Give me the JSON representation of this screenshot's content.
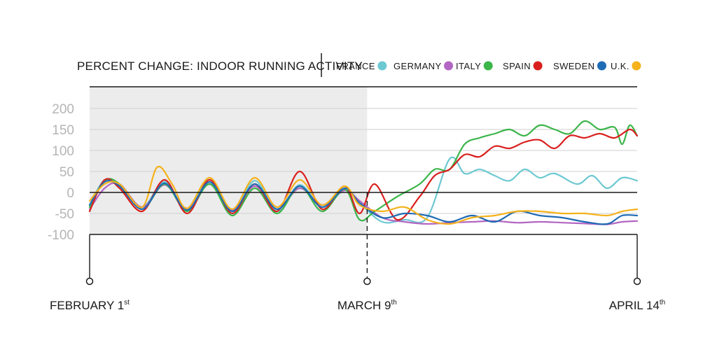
{
  "chart_data": {
    "type": "line",
    "title": "PERCENT CHANGE: INDOOR RUNNING ACTIVITY",
    "xlabel": "",
    "ylabel": "",
    "ylim": [
      -100,
      200
    ],
    "yticks": [
      {
        "value": 200,
        "label": "200"
      },
      {
        "value": 150,
        "label": "150"
      },
      {
        "value": 100,
        "label": "100"
      },
      {
        "value": 50,
        "label": "50"
      },
      {
        "value": 0,
        "label": "0"
      },
      {
        "value": -50,
        "label": "-50"
      },
      {
        "value": -100,
        "label": "-100"
      }
    ],
    "x_range": [
      "2020-02-01",
      "2020-04-14"
    ],
    "date_markers": [
      {
        "date": "2020-02-01",
        "label": "FEBRUARY 1",
        "suffix": "st"
      },
      {
        "date": "2020-03-09",
        "label": "MARCH 9",
        "suffix": "th"
      },
      {
        "date": "2020-04-14",
        "label": "APRIL 14",
        "suffix": "th"
      }
    ],
    "shaded_period": [
      "2020-02-01",
      "2020-03-09"
    ],
    "grid": true,
    "legend_position": "top-right",
    "series": [
      {
        "name": "FRANCE",
        "color": "#6cc9d2",
        "x": [
          "2020-02-01",
          "2020-02-03",
          "2020-02-05",
          "2020-02-08",
          "2020-02-11",
          "2020-02-14",
          "2020-02-17",
          "2020-02-20",
          "2020-02-23",
          "2020-02-26",
          "2020-02-29",
          "2020-03-03",
          "2020-03-06",
          "2020-03-08",
          "2020-03-11",
          "2020-03-14",
          "2020-03-17",
          "2020-03-20",
          "2020-03-22",
          "2020-03-24",
          "2020-03-26",
          "2020-03-28",
          "2020-03-30",
          "2020-04-01",
          "2020-04-03",
          "2020-04-06",
          "2020-04-08",
          "2020-04-10",
          "2020-04-12",
          "2020-04-14"
        ],
        "y": [
          -30,
          30,
          15,
          -35,
          25,
          -40,
          30,
          -50,
          28,
          -45,
          18,
          -35,
          5,
          -25,
          -70,
          -65,
          -60,
          80,
          45,
          55,
          40,
          28,
          55,
          35,
          45,
          20,
          40,
          10,
          35,
          28
        ]
      },
      {
        "name": "GERMANY",
        "color": "#b266c2",
        "x": [
          "2020-02-01",
          "2020-02-03",
          "2020-02-05",
          "2020-02-08",
          "2020-02-11",
          "2020-02-14",
          "2020-02-17",
          "2020-02-20",
          "2020-02-23",
          "2020-02-26",
          "2020-02-29",
          "2020-03-03",
          "2020-03-06",
          "2020-03-08",
          "2020-03-11",
          "2020-03-14",
          "2020-03-17",
          "2020-03-20",
          "2020-03-23",
          "2020-03-26",
          "2020-03-29",
          "2020-04-01",
          "2020-04-04",
          "2020-04-07",
          "2020-04-10",
          "2020-04-12",
          "2020-04-14"
        ],
        "y": [
          -40,
          10,
          20,
          -35,
          18,
          -38,
          20,
          -42,
          15,
          -40,
          10,
          -30,
          5,
          -20,
          -60,
          -70,
          -75,
          -72,
          -70,
          -68,
          -72,
          -70,
          -72,
          -74,
          -76,
          -70,
          -68
        ]
      },
      {
        "name": "ITALY",
        "color": "#3cb54a",
        "x": [
          "2020-02-01",
          "2020-02-03",
          "2020-02-05",
          "2020-02-08",
          "2020-02-11",
          "2020-02-14",
          "2020-02-17",
          "2020-02-20",
          "2020-02-23",
          "2020-02-26",
          "2020-02-29",
          "2020-03-03",
          "2020-03-06",
          "2020-03-08",
          "2020-03-10",
          "2020-03-13",
          "2020-03-16",
          "2020-03-18",
          "2020-03-20",
          "2020-03-22",
          "2020-03-24",
          "2020-03-26",
          "2020-03-28",
          "2020-03-30",
          "2020-04-01",
          "2020-04-03",
          "2020-04-05",
          "2020-04-07",
          "2020-04-09",
          "2020-04-11",
          "2020-04-12",
          "2020-04-13",
          "2020-04-14"
        ],
        "y": [
          -35,
          28,
          20,
          -40,
          20,
          -45,
          20,
          -55,
          10,
          -50,
          15,
          -45,
          8,
          -65,
          -45,
          -10,
          20,
          55,
          55,
          115,
          130,
          140,
          150,
          135,
          160,
          150,
          140,
          170,
          150,
          155,
          115,
          160,
          135
        ]
      },
      {
        "name": "SPAIN",
        "color": "#d9201f",
        "x": [
          "2020-02-01",
          "2020-02-03",
          "2020-02-05",
          "2020-02-08",
          "2020-02-11",
          "2020-02-14",
          "2020-02-17",
          "2020-02-20",
          "2020-02-23",
          "2020-02-26",
          "2020-02-29",
          "2020-03-03",
          "2020-03-06",
          "2020-03-08",
          "2020-03-10",
          "2020-03-13",
          "2020-03-16",
          "2020-03-18",
          "2020-03-20",
          "2020-03-22",
          "2020-03-24",
          "2020-03-26",
          "2020-03-28",
          "2020-03-30",
          "2020-04-01",
          "2020-04-03",
          "2020-04-05",
          "2020-04-07",
          "2020-04-09",
          "2020-04-11",
          "2020-04-13",
          "2020-04-14"
        ],
        "y": [
          -45,
          30,
          10,
          -45,
          30,
          -50,
          30,
          -50,
          20,
          -45,
          50,
          -40,
          15,
          -50,
          20,
          -65,
          -10,
          40,
          55,
          90,
          85,
          110,
          105,
          120,
          125,
          105,
          135,
          130,
          140,
          130,
          150,
          135
        ]
      },
      {
        "name": "SWEDEN",
        "color": "#1f6bb5",
        "x": [
          "2020-02-01",
          "2020-02-03",
          "2020-02-05",
          "2020-02-08",
          "2020-02-11",
          "2020-02-14",
          "2020-02-17",
          "2020-02-20",
          "2020-02-23",
          "2020-02-26",
          "2020-02-29",
          "2020-03-03",
          "2020-03-06",
          "2020-03-08",
          "2020-03-11",
          "2020-03-14",
          "2020-03-17",
          "2020-03-20",
          "2020-03-23",
          "2020-03-26",
          "2020-03-29",
          "2020-04-01",
          "2020-04-04",
          "2020-04-07",
          "2020-04-10",
          "2020-04-12",
          "2020-04-14"
        ],
        "y": [
          -30,
          25,
          15,
          -40,
          22,
          -42,
          25,
          -45,
          20,
          -40,
          15,
          -35,
          10,
          -25,
          -60,
          -50,
          -55,
          -70,
          -55,
          -70,
          -45,
          -55,
          -60,
          -70,
          -75,
          -55,
          -55
        ]
      },
      {
        "name": "U.K.",
        "color": "#f5b21b",
        "x": [
          "2020-02-01",
          "2020-02-03",
          "2020-02-05",
          "2020-02-08",
          "2020-02-10",
          "2020-02-12",
          "2020-02-14",
          "2020-02-17",
          "2020-02-20",
          "2020-02-23",
          "2020-02-26",
          "2020-02-29",
          "2020-03-03",
          "2020-03-06",
          "2020-03-08",
          "2020-03-11",
          "2020-03-14",
          "2020-03-17",
          "2020-03-20",
          "2020-03-23",
          "2020-03-26",
          "2020-03-29",
          "2020-04-01",
          "2020-04-04",
          "2020-04-07",
          "2020-04-10",
          "2020-04-12",
          "2020-04-14"
        ],
        "y": [
          -20,
          20,
          20,
          -35,
          60,
          20,
          -38,
          35,
          -40,
          35,
          -35,
          30,
          -30,
          15,
          -30,
          -45,
          -35,
          -65,
          -75,
          -60,
          -55,
          -45,
          -45,
          -50,
          -50,
          -55,
          -45,
          -40
        ]
      }
    ]
  }
}
